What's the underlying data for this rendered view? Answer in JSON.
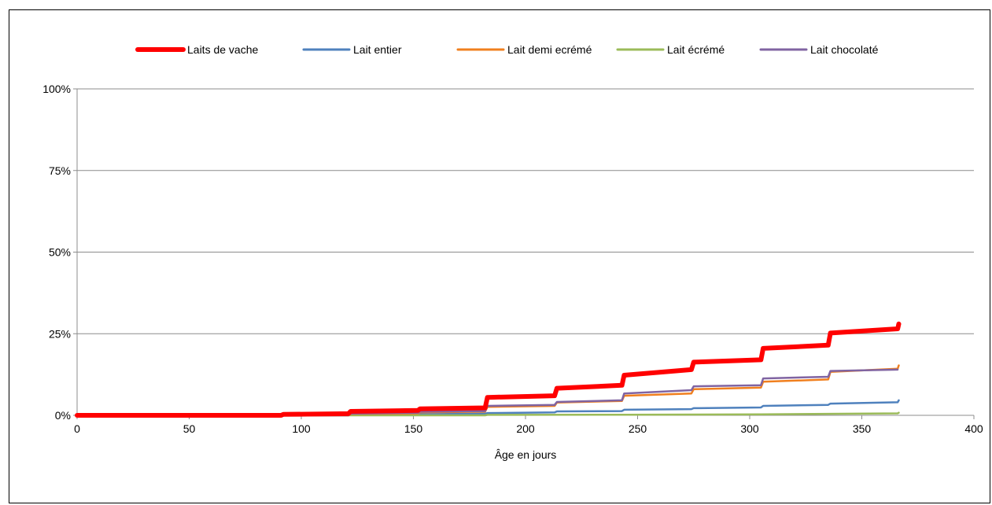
{
  "chart_data": {
    "type": "line",
    "title": "",
    "xlabel": "Âge en jours",
    "ylabel": "",
    "xlim": [
      0,
      400
    ],
    "ylim": [
      0,
      100
    ],
    "x_ticks": [
      0,
      50,
      100,
      150,
      200,
      250,
      300,
      350,
      400
    ],
    "x_tick_labels": [
      "0",
      "50",
      "100",
      "150",
      "200",
      "250",
      "300",
      "350",
      "400"
    ],
    "y_ticks": [
      0,
      25,
      50,
      75,
      100
    ],
    "y_tick_labels": [
      "0%",
      "25%",
      "50%",
      "75%",
      "100%"
    ],
    "grid": true,
    "legend_position": "top",
    "series": [
      {
        "name": "Laits de vache",
        "color": "#ff0000",
        "width": 6,
        "points": [
          [
            0,
            0
          ],
          [
            91,
            0
          ],
          [
            92,
            0.3
          ],
          [
            121,
            0.5
          ],
          [
            122,
            1.2
          ],
          [
            152,
            1.5
          ],
          [
            153,
            2.0
          ],
          [
            182,
            2.3
          ],
          [
            183,
            5.5
          ],
          [
            213,
            6.0
          ],
          [
            214,
            8.3
          ],
          [
            243,
            9.2
          ],
          [
            244,
            12.3
          ],
          [
            274,
            14.0
          ],
          [
            275,
            16.3
          ],
          [
            305,
            17.0
          ],
          [
            306,
            20.5
          ],
          [
            335,
            21.5
          ],
          [
            336,
            25.2
          ],
          [
            366,
            26.5
          ],
          [
            366.5,
            28
          ]
        ]
      },
      {
        "name": "Lait entier",
        "color": "#4f81bd",
        "width": 2.5,
        "points": [
          [
            0,
            0
          ],
          [
            121,
            0
          ],
          [
            122,
            0.2
          ],
          [
            182,
            0.5
          ],
          [
            183,
            0.7
          ],
          [
            213,
            0.9
          ],
          [
            214,
            1.2
          ],
          [
            243,
            1.3
          ],
          [
            244,
            1.7
          ],
          [
            274,
            1.9
          ],
          [
            275,
            2.2
          ],
          [
            305,
            2.4
          ],
          [
            306,
            2.9
          ],
          [
            335,
            3.2
          ],
          [
            336,
            3.6
          ],
          [
            366,
            4.0
          ],
          [
            366.5,
            4.6
          ]
        ]
      },
      {
        "name": "Lait demi ecrémé",
        "color": "#f07f1e",
        "width": 2.5,
        "points": [
          [
            0,
            0
          ],
          [
            121,
            0
          ],
          [
            122,
            0.4
          ],
          [
            152,
            0.6
          ],
          [
            153,
            0.9
          ],
          [
            182,
            1.1
          ],
          [
            183,
            2.6
          ],
          [
            213,
            2.9
          ],
          [
            214,
            3.9
          ],
          [
            243,
            4.4
          ],
          [
            244,
            6.0
          ],
          [
            274,
            6.7
          ],
          [
            275,
            8.0
          ],
          [
            305,
            8.5
          ],
          [
            306,
            10.3
          ],
          [
            335,
            11.0
          ],
          [
            336,
            13.3
          ],
          [
            366,
            14.3
          ],
          [
            366.5,
            15.3
          ]
        ]
      },
      {
        "name": "Lait écrémé",
        "color": "#9bbb59",
        "width": 2.5,
        "points": [
          [
            0,
            0
          ],
          [
            182,
            0
          ],
          [
            183,
            0.15
          ],
          [
            244,
            0.2
          ],
          [
            305,
            0.3
          ],
          [
            366,
            0.6
          ],
          [
            366.5,
            0.8
          ]
        ]
      },
      {
        "name": "Lait chocolaté",
        "color": "#8064a2",
        "width": 2.5,
        "points": [
          [
            0,
            0
          ],
          [
            121,
            0
          ],
          [
            122,
            0.5
          ],
          [
            152,
            0.8
          ],
          [
            153,
            1.1
          ],
          [
            182,
            1.3
          ],
          [
            183,
            2.9
          ],
          [
            213,
            3.2
          ],
          [
            214,
            4.1
          ],
          [
            243,
            4.6
          ],
          [
            244,
            6.7
          ],
          [
            274,
            7.7
          ],
          [
            275,
            8.9
          ],
          [
            305,
            9.2
          ],
          [
            306,
            11.3
          ],
          [
            335,
            11.8
          ],
          [
            336,
            13.6
          ],
          [
            366,
            14.0
          ]
        ]
      }
    ]
  }
}
